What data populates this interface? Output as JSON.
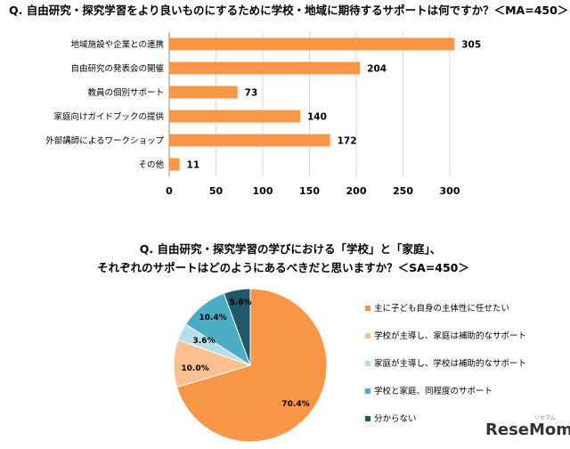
{
  "chart_data": [
    {
      "type": "bar",
      "orientation": "horizontal",
      "title": "Q. 自由研究・探究学習をより良いものにするために学校・地域に期待するサポートは何ですか？＜MA=450＞",
      "categories": [
        "地域施設や企業との連携",
        "自由研究の発表会の開催",
        "教員の個別サポート",
        "家庭向けガイドブックの提供",
        "外部講師によるワークショップ",
        "その他"
      ],
      "values": [
        305,
        204,
        73,
        140,
        172,
        11
      ],
      "xlim": [
        0,
        300
      ],
      "xticks": [
        "0",
        "50",
        "100",
        "150",
        "200",
        "250",
        "300"
      ],
      "color": "#F79646"
    },
    {
      "type": "pie",
      "title_line1": "Q. 自由研究・探究学習の学びにおける「学校」と「家庭」、",
      "title_line2": "それぞれのサポートはどのようにあるべきだと思いますか？＜SA=450＞",
      "labels": [
        "主に子ども自身の主体性に任せたい",
        "学校が主導し、家庭は補助的なサポート",
        "家庭が主導し、学校は補助的なサポート",
        "学校と家庭、同程度のサポート",
        "分からない"
      ],
      "values": [
        70.4,
        10.0,
        3.6,
        10.4,
        5.6
      ],
      "value_labels": [
        "70.4%",
        "10.0%",
        "3.6%",
        "10.4%",
        "5.6%"
      ],
      "colors": [
        "#F79646",
        "#FAC090",
        "#B7DEE8",
        "#4BACC6",
        "#215968"
      ]
    }
  ],
  "watermark": {
    "brand": "ReseMom",
    "sub": "リセマム"
  }
}
